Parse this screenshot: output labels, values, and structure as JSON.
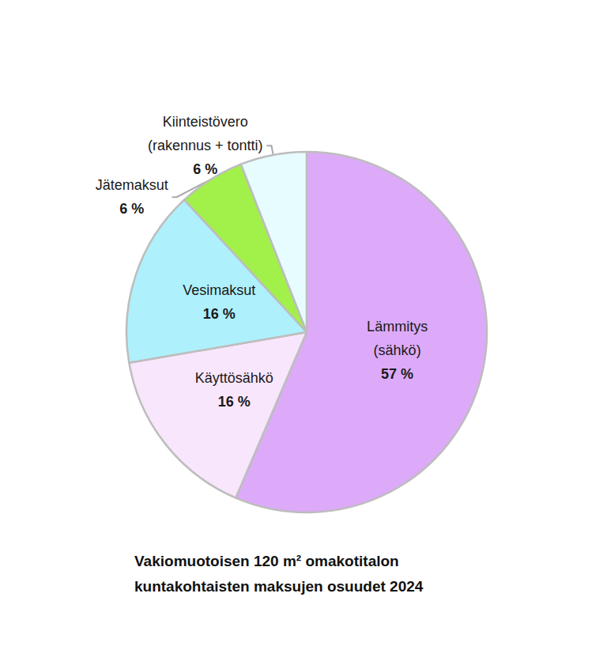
{
  "chart_data": {
    "type": "pie",
    "title": "Vakiomuotoisen 120 m² omakotitalon\nkuntakohtaisten maksujen osuudet 2024",
    "categories": [
      "Lämmitys\n(sähkö)",
      "Käyttösähkö",
      "Vesimaksut",
      "Jätemaksut",
      "Kiinteistövero\n(rakennus + tontti)"
    ],
    "values": [
      57,
      16,
      16,
      6,
      6
    ],
    "value_labels": [
      "57 %",
      "16 %",
      "16 %",
      "6 %",
      "6 %"
    ],
    "colors": [
      "#dcaaf8",
      "#f8e6fc",
      "#aef0fb",
      "#a2f04a",
      "#e6fcfe"
    ],
    "data_labels": true
  }
}
